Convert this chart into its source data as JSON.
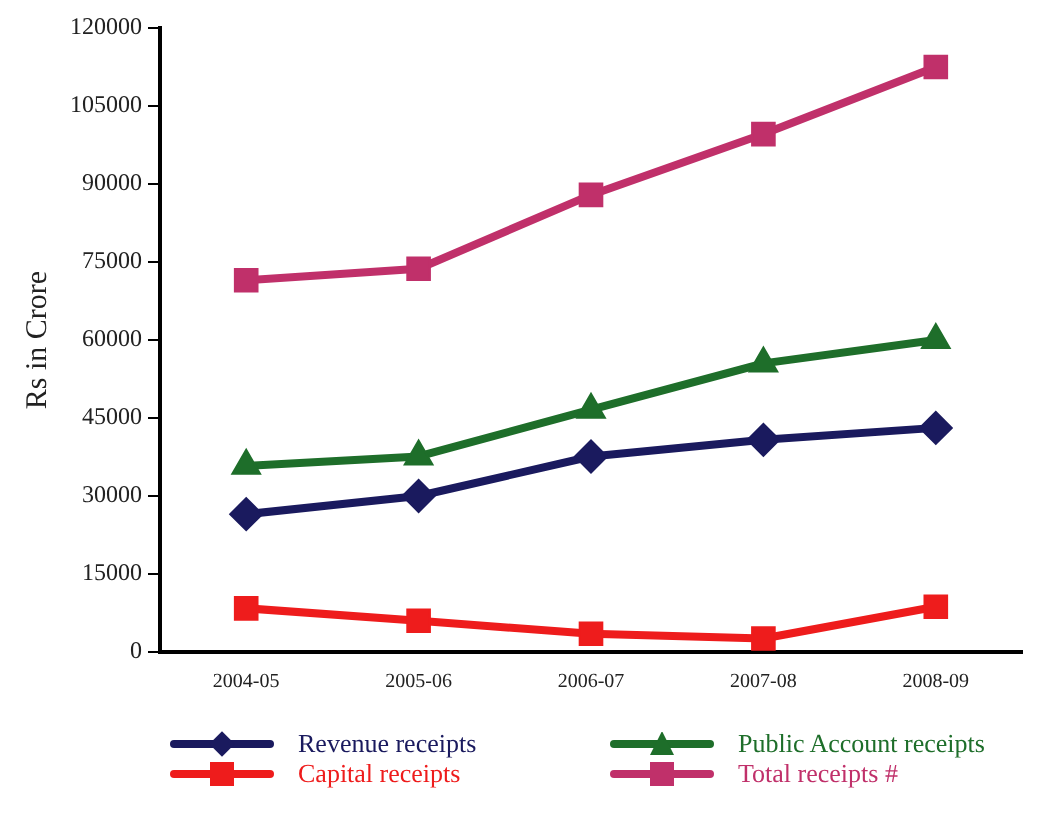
{
  "chart_data": {
    "type": "line",
    "ylabel": "Rs in Crore",
    "categories": [
      "2004-05",
      "2005-06",
      "2006-07",
      "2007-08",
      "2008-09"
    ],
    "ylim": [
      0,
      120000
    ],
    "yticks": [
      0,
      15000,
      30000,
      45000,
      60000,
      75000,
      90000,
      105000,
      120000
    ],
    "grid": false,
    "legend": "bottom",
    "line_style": "solid",
    "series": [
      {
        "name": "Revenue receipts",
        "color": "#1a1a5e",
        "marker": "diamond",
        "values": [
          26500,
          30000,
          37600,
          40800,
          43100
        ]
      },
      {
        "name": "Capital receipts",
        "color": "#ee1c1c",
        "marker": "square",
        "values": [
          8400,
          6000,
          3500,
          2600,
          8700
        ]
      },
      {
        "name": "Public Account receipts",
        "color": "#1e6e2a",
        "marker": "triangle",
        "values": [
          35800,
          37600,
          46600,
          55500,
          60000
        ]
      },
      {
        "name": "Total receipts #",
        "color": "#c0306a",
        "marker": "square",
        "values": [
          71500,
          73700,
          87900,
          99600,
          112500
        ]
      }
    ]
  }
}
